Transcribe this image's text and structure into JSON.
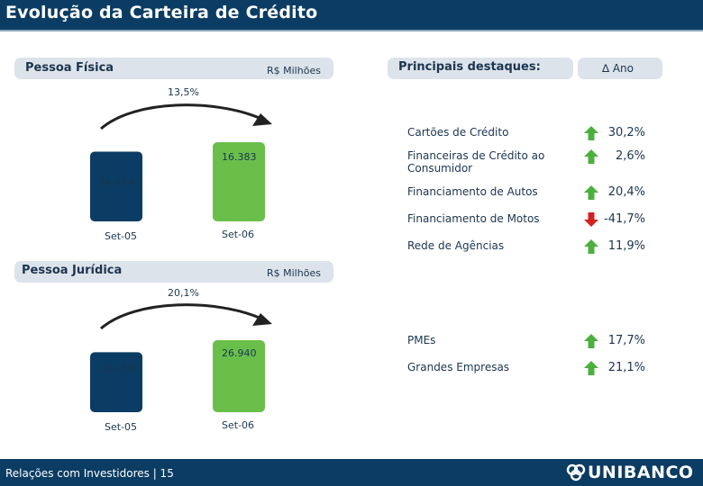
{
  "header": {
    "title": "Evolução da Carteira de Crédito"
  },
  "pf": {
    "title": "Pessoa Física",
    "unit": "R$ Milhões",
    "growth": "13,5%"
  },
  "pj": {
    "title": "Pessoa Jurídica",
    "unit": "R$ Milhões",
    "growth": "20,1%"
  },
  "highlights": {
    "title": "Principais destaques:",
    "col": "∆ Ano",
    "pf_items": [
      {
        "label": "Cartões de Crédito",
        "value": "30,2%",
        "dir": "up"
      },
      {
        "label": "Financeiras de Crédito ao\nConsumidor",
        "value": "2,6%",
        "dir": "up"
      },
      {
        "label": "Financiamento de Autos",
        "value": "20,4%",
        "dir": "up"
      },
      {
        "label": "Financiamento de Motos",
        "value": "-41,7%",
        "dir": "down"
      },
      {
        "label": "Rede de Agências",
        "value": "11,9%",
        "dir": "up"
      }
    ],
    "pj_items": [
      {
        "label": "PMEs",
        "value": "17,7%",
        "dir": "up"
      },
      {
        "label": "Grandes Empresas",
        "value": "21,1%",
        "dir": "up"
      }
    ]
  },
  "colors": {
    "navy": "#0b3c63",
    "green": "#6abf4b",
    "up": "#4caf3e",
    "down": "#d62020"
  },
  "chart_data": [
    {
      "type": "bar",
      "title": "Pessoa Física",
      "ylabel": "R$ Milhões",
      "categories": [
        "Set-05",
        "Set-06"
      ],
      "values": [
        14434,
        16383
      ],
      "value_labels": [
        "14.434",
        "16.383"
      ],
      "growth_annotation": "13,5%",
      "ylim": [
        0,
        16383
      ]
    },
    {
      "type": "bar",
      "title": "Pessoa Jurídica",
      "ylabel": "R$ Milhões",
      "categories": [
        "Set-05",
        "Set-06"
      ],
      "values": [
        22438,
        26940
      ],
      "value_labels": [
        "22.438",
        "26.940"
      ],
      "growth_annotation": "20,1%",
      "ylim": [
        0,
        26940
      ]
    }
  ],
  "footer": {
    "text": "Relações com Investidores | 15",
    "logo": "UNIBANCO"
  }
}
